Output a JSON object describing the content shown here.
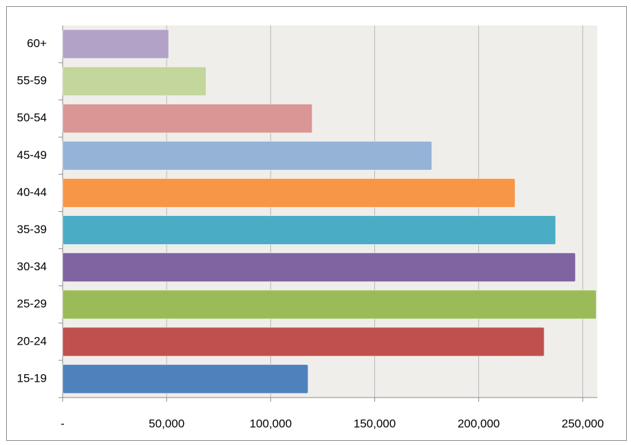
{
  "chart_data": {
    "type": "hbar",
    "categories": [
      "15-19",
      "20-24",
      "25-29",
      "30-34",
      "35-39",
      "40-44",
      "45-49",
      "50-54",
      "55-59",
      "60+"
    ],
    "values": [
      118000,
      231500,
      256500,
      246500,
      237000,
      217500,
      177500,
      120000,
      69000,
      51000
    ],
    "colors": [
      "#4f81bd",
      "#c0504d",
      "#9bbb59",
      "#8064a2",
      "#4bacc6",
      "#f79646",
      "#95b3d7",
      "#d99694",
      "#c3d69b",
      "#b3a2c7"
    ],
    "xlim": [
      0,
      257000
    ],
    "xticks": [
      {
        "value": 0,
        "label": "-"
      },
      {
        "value": 50000,
        "label": "50,000"
      },
      {
        "value": 100000,
        "label": "100,000"
      },
      {
        "value": 150000,
        "label": "150,000"
      },
      {
        "value": 200000,
        "label": "200,000"
      },
      {
        "value": 250000,
        "label": "250,000"
      }
    ],
    "grid": true
  }
}
